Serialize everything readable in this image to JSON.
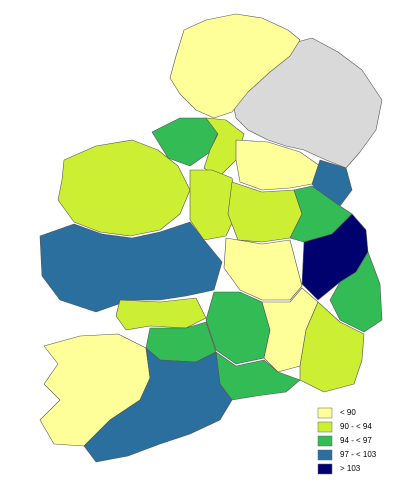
{
  "legend": {
    "items": [
      {
        "label": "< 90",
        "color": "#ffff99"
      },
      {
        "label": "90 - < 94",
        "color": "#ccee33"
      },
      {
        "label": "94 - < 97",
        "color": "#33bb55"
      },
      {
        "label": "97 - < 103",
        "color": "#2a6f9e"
      },
      {
        "label": "> 103",
        "color": "#00006e"
      }
    ]
  }
}
